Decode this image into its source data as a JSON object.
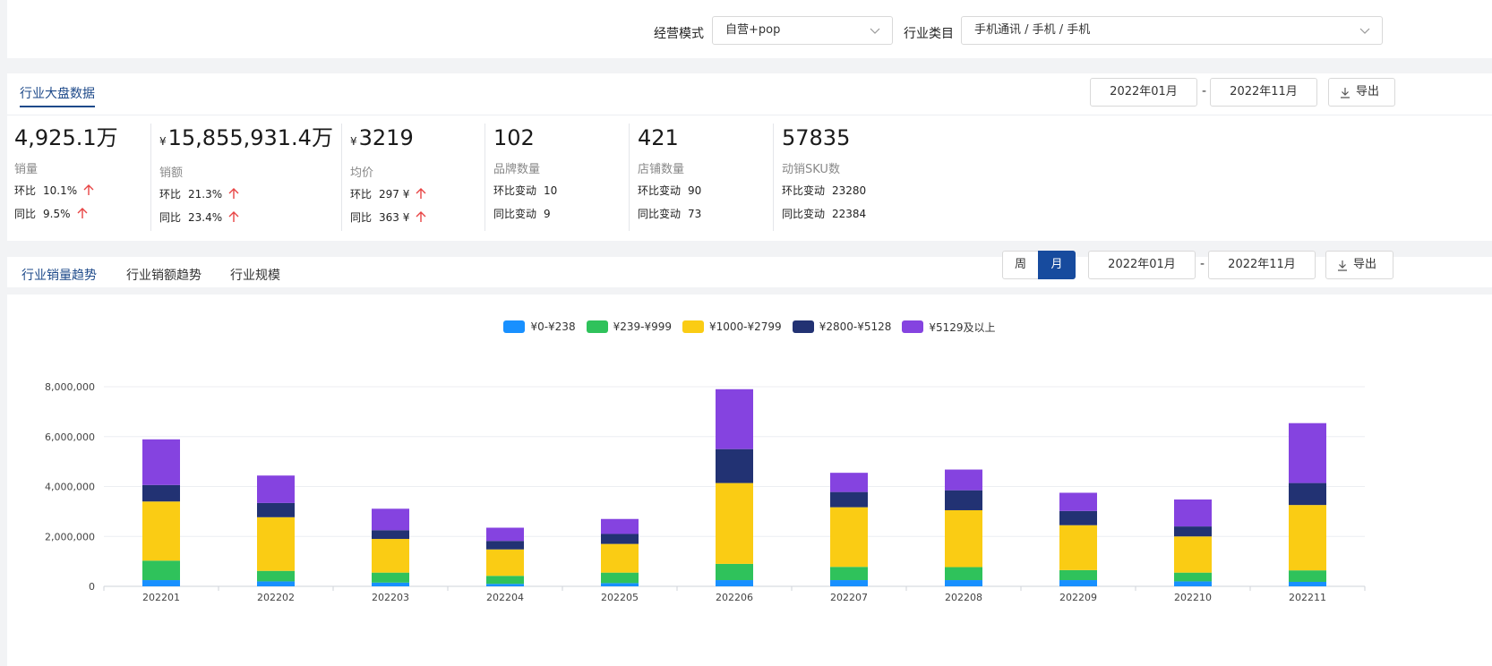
{
  "filters": {
    "mode_label": "经营模式",
    "mode_value": "自营+pop",
    "category_label": "行业类目",
    "category_value": "手机通讯 / 手机 / 手机"
  },
  "overview": {
    "tab": "行业大盘数据",
    "date_start": "2022年01月",
    "date_end": "2022年11月",
    "dash": "-",
    "export": "导出",
    "metrics": [
      {
        "value": "4,925.1万",
        "currency": "",
        "name": "销量",
        "r1_label": "环比",
        "r1_value": "10.1%",
        "r1_arrow": true,
        "r2_label": "同比",
        "r2_value": "9.5%",
        "r2_arrow": true
      },
      {
        "value": "15,855,931.4万",
        "currency": "¥",
        "name": "销额",
        "r1_label": "环比",
        "r1_value": "21.3%",
        "r1_arrow": true,
        "r2_label": "同比",
        "r2_value": "23.4%",
        "r2_arrow": true
      },
      {
        "value": "3219",
        "currency": "¥",
        "name": "均价",
        "r1_label": "环比",
        "r1_value": "297 ¥",
        "r1_arrow": true,
        "r2_label": "同比",
        "r2_value": "363 ¥",
        "r2_arrow": true
      },
      {
        "value": "102",
        "currency": "",
        "name": "品牌数量",
        "r1_label": "环比变动",
        "r1_value": "10",
        "r1_arrow": false,
        "r2_label": "同比变动",
        "r2_value": "9",
        "r2_arrow": false
      },
      {
        "value": "421",
        "currency": "",
        "name": "店铺数量",
        "r1_label": "环比变动",
        "r1_value": "90",
        "r1_arrow": false,
        "r2_label": "同比变动",
        "r2_value": "73",
        "r2_arrow": false
      },
      {
        "value": "57835",
        "currency": "",
        "name": "动销SKU数",
        "r1_label": "环比变动",
        "r1_value": "23280",
        "r1_arrow": false,
        "r2_label": "同比变动",
        "r2_value": "22384",
        "r2_arrow": false
      }
    ]
  },
  "trend": {
    "tabs": [
      "行业销量趋势",
      "行业销额趋势",
      "行业规模"
    ],
    "active_tab": 0,
    "period_week": "周",
    "period_month": "月",
    "date_start": "2022年01月",
    "date_end": "2022年11月",
    "dash": "-",
    "export": "导出"
  },
  "colors": {
    "accent": "#1e4a8a",
    "up_arrow": "#e84545",
    "series": [
      "#1890ff",
      "#2fc25b",
      "#facc14",
      "#223273",
      "#8543e0"
    ]
  },
  "chart_data": {
    "type": "bar",
    "stacked": true,
    "categories": [
      "202201",
      "202202",
      "202203",
      "202204",
      "202205",
      "202206",
      "202207",
      "202208",
      "202209",
      "202210",
      "202211"
    ],
    "series": [
      {
        "name": "¥0-¥238",
        "values": [
          250000,
          200000,
          150000,
          100000,
          130000,
          250000,
          250000,
          250000,
          250000,
          200000,
          180000
        ]
      },
      {
        "name": "¥239-¥999",
        "values": [
          780000,
          420000,
          400000,
          320000,
          420000,
          650000,
          530000,
          520000,
          400000,
          350000,
          460000
        ]
      },
      {
        "name": "¥1000-¥2799",
        "values": [
          2370000,
          2150000,
          1350000,
          1060000,
          1150000,
          3240000,
          2390000,
          2280000,
          1800000,
          1450000,
          2620000
        ]
      },
      {
        "name": "¥2800-¥5128",
        "values": [
          660000,
          570000,
          350000,
          340000,
          400000,
          1360000,
          610000,
          800000,
          570000,
          400000,
          880000
        ]
      },
      {
        "name": "¥5129及以上",
        "values": [
          1830000,
          1100000,
          860000,
          530000,
          600000,
          2400000,
          770000,
          830000,
          730000,
          1080000,
          2400000
        ]
      }
    ],
    "yticks": [
      "0",
      "2,000,000",
      "4,000,000",
      "6,000,000",
      "8,000,000"
    ],
    "ylim": [
      0,
      8000000
    ],
    "grid": true,
    "legend": "top-center"
  }
}
